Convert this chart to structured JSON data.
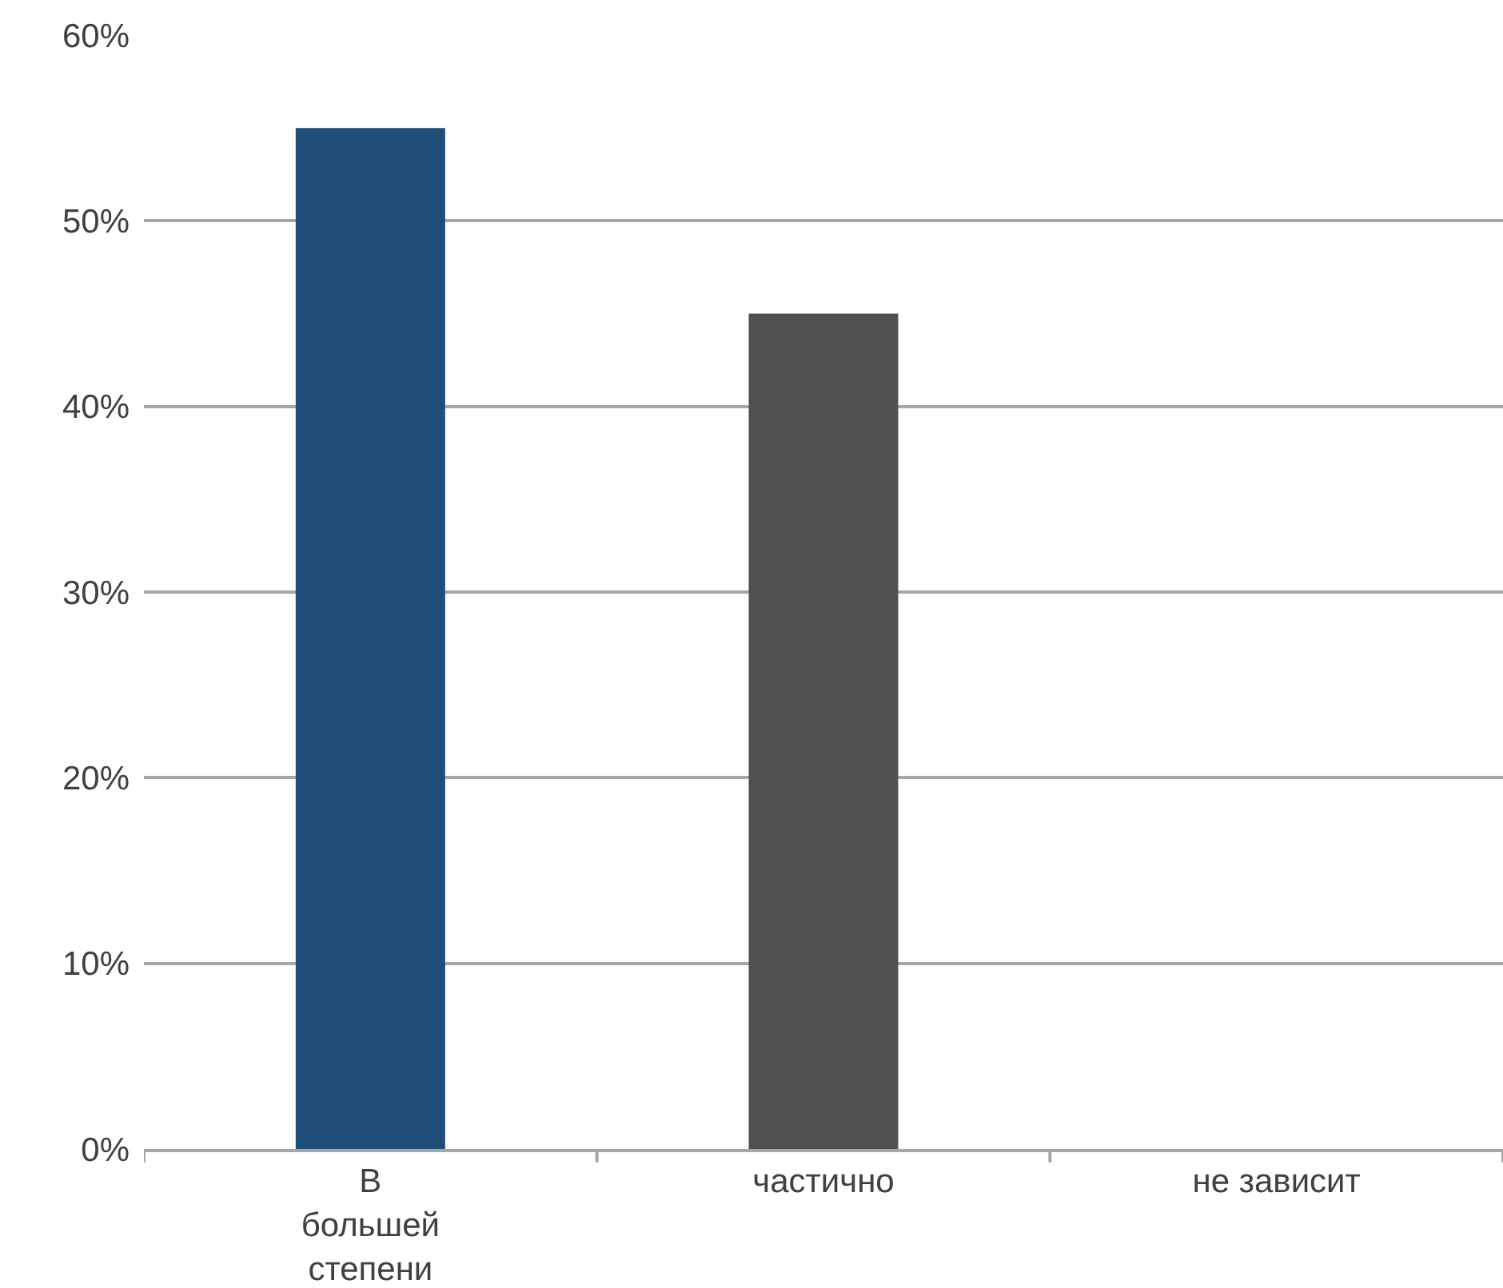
{
  "chart_data": {
    "type": "bar",
    "categories": [
      "В большей степени",
      "частично",
      "не зависит"
    ],
    "values": [
      55,
      45,
      0
    ],
    "colors": [
      "#1f4e79",
      "#505050",
      "#505050"
    ],
    "ylim": [
      0,
      60
    ],
    "yticks": [
      {
        "value": 0,
        "label": "0%"
      },
      {
        "value": 10,
        "label": "10%"
      },
      {
        "value": 20,
        "label": "20%"
      },
      {
        "value": 30,
        "label": "30%"
      },
      {
        "value": 40,
        "label": "40%"
      },
      {
        "value": 50,
        "label": "50%"
      },
      {
        "value": 60,
        "label": "60%"
      }
    ],
    "grid": "y",
    "legend": false
  }
}
